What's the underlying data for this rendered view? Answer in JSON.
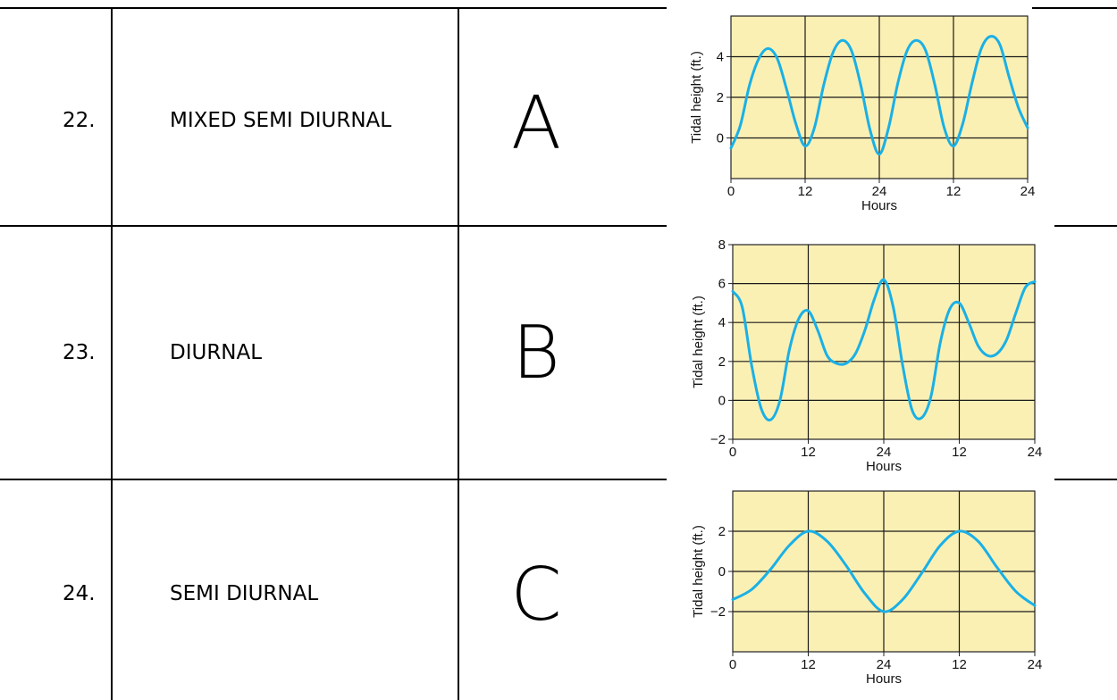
{
  "rows": [
    {
      "number": "22.",
      "name": "MIXED SEMI DIURNAL",
      "letter": "A"
    },
    {
      "number": "23.",
      "name": "DIURNAL",
      "letter": "B"
    },
    {
      "number": "24.",
      "name": "SEMI DIURNAL",
      "letter": "C"
    }
  ],
  "colors": {
    "plot_bg": "#fbf0b4",
    "curve": "#1ab0e6",
    "grid": "#1a1a1a"
  },
  "chart_data": [
    {
      "type": "line",
      "ylabel": "Tidal height (ft.)",
      "xlabel": "Hours",
      "x_tick_labels": [
        "0",
        "12",
        "24",
        "12",
        "24"
      ],
      "y_tick_labels": [
        "0",
        "2",
        "4"
      ],
      "xlim": [
        0,
        48
      ],
      "ylim": [
        -2,
        6
      ],
      "grid": true,
      "series": [
        {
          "x": [
            0,
            1.5,
            3,
            4.5,
            6,
            7.5,
            9,
            10.5,
            12,
            13.5,
            15,
            16.5,
            18,
            19.5,
            21,
            22.5,
            24,
            25.5,
            27,
            28.5,
            30,
            31.5,
            33,
            34.5,
            36,
            37.5,
            39,
            40.5,
            42,
            43.5,
            45,
            46.5,
            48
          ],
          "y": [
            -0.5,
            0.6,
            2.6,
            3.9,
            4.4,
            3.9,
            2.4,
            0.7,
            -0.4,
            0.5,
            2.6,
            4.2,
            4.8,
            4.3,
            2.6,
            0.4,
            -0.8,
            0.5,
            2.7,
            4.3,
            4.8,
            4.3,
            2.6,
            0.5,
            -0.4,
            0.7,
            2.7,
            4.4,
            5.0,
            4.6,
            3.0,
            1.5,
            0.5
          ]
        }
      ]
    },
    {
      "type": "line",
      "ylabel": "Tidal height (ft.)",
      "xlabel": "Hours",
      "x_tick_labels": [
        "0",
        "12",
        "24",
        "12",
        "24"
      ],
      "y_tick_labels": [
        "−2",
        "0",
        "2",
        "4",
        "6",
        "8"
      ],
      "xlim": [
        0,
        48
      ],
      "ylim": [
        -2,
        8
      ],
      "grid": true,
      "series": [
        {
          "x": [
            0,
            1.5,
            3,
            4.5,
            6,
            7.5,
            9,
            10.5,
            12,
            13.5,
            15,
            16.5,
            18,
            19.5,
            21,
            22.5,
            24,
            25.5,
            27,
            28.5,
            30,
            31.5,
            33,
            34.5,
            36,
            37.5,
            39,
            40.5,
            42,
            43.5,
            45,
            46.5,
            48
          ],
          "y": [
            5.6,
            4.8,
            1.8,
            -0.4,
            -1.0,
            0.0,
            2.6,
            4.2,
            4.6,
            3.6,
            2.3,
            1.9,
            1.9,
            2.4,
            3.6,
            5.2,
            6.2,
            4.8,
            1.8,
            -0.5,
            -0.9,
            0.2,
            3.0,
            4.7,
            5.0,
            4.0,
            2.8,
            2.3,
            2.4,
            3.1,
            4.5,
            5.8,
            6.1
          ]
        }
      ]
    },
    {
      "type": "line",
      "ylabel": "Tidal height (ft.)",
      "xlabel": "Hours",
      "x_tick_labels": [
        "0",
        "12",
        "24",
        "12",
        "24"
      ],
      "y_tick_labels": [
        "−2",
        "0",
        "2"
      ],
      "xlim": [
        0,
        48
      ],
      "ylim": [
        -4,
        4
      ],
      "grid": true,
      "series": [
        {
          "x": [
            0,
            3,
            6,
            9,
            12,
            15,
            18,
            21,
            24,
            27,
            30,
            33,
            36,
            39,
            42,
            45,
            48
          ],
          "y": [
            -1.4,
            -0.9,
            0.1,
            1.3,
            2.0,
            1.5,
            0.3,
            -1.1,
            -2.0,
            -1.4,
            -0.1,
            1.3,
            2.0,
            1.5,
            0.2,
            -1.0,
            -1.7
          ]
        }
      ]
    }
  ]
}
